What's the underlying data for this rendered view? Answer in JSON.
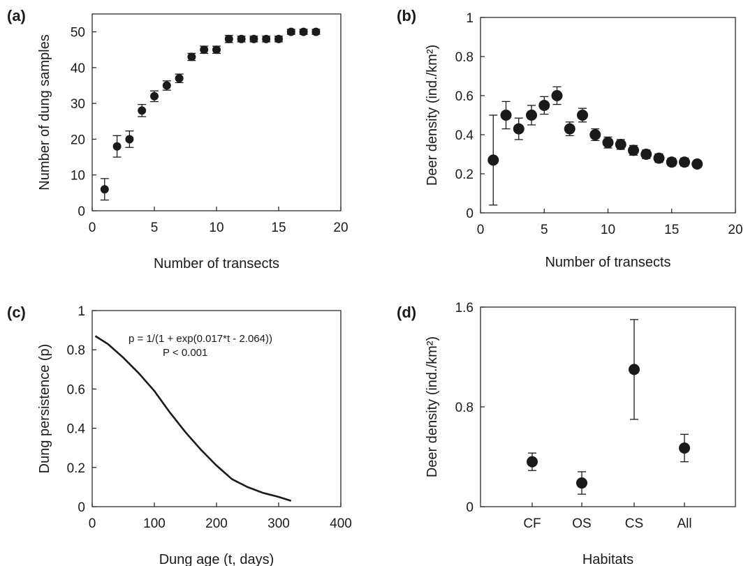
{
  "chart_data": [
    {
      "id": "a",
      "type": "scatter",
      "panel_label": "(a)",
      "xlabel": "Number of transects",
      "ylabel": "Number of dung samples",
      "xlim": [
        0,
        20
      ],
      "ylim": [
        0,
        55
      ],
      "xticks": [
        0,
        5,
        10,
        15,
        20
      ],
      "yticks": [
        0,
        10,
        20,
        30,
        40,
        50
      ],
      "x": [
        1,
        2,
        3,
        4,
        5,
        6,
        7,
        8,
        9,
        10,
        11,
        12,
        13,
        14,
        15,
        16,
        17,
        18
      ],
      "y": [
        6,
        18,
        20,
        28,
        32,
        35,
        37,
        43,
        45,
        45,
        48,
        48,
        48,
        48,
        48,
        50,
        50,
        50
      ],
      "err": [
        3,
        3,
        2.3,
        1.7,
        1.5,
        1.3,
        1.2,
        1,
        1,
        1,
        1,
        0.8,
        0.8,
        0.8,
        0.8,
        0.7,
        0.7,
        0.7
      ]
    },
    {
      "id": "b",
      "type": "scatter",
      "panel_label": "(b)",
      "xlabel": "Number of transects",
      "ylabel": "Deer density (ind./km²)",
      "xlim": [
        0,
        20
      ],
      "ylim": [
        0,
        1
      ],
      "xticks": [
        0,
        5,
        10,
        15,
        20
      ],
      "yticks": [
        0,
        0.2,
        0.4,
        0.6,
        0.8,
        1
      ],
      "x": [
        1,
        2,
        3,
        4,
        5,
        6,
        7,
        8,
        9,
        10,
        11,
        12,
        13,
        14,
        15,
        16,
        17
      ],
      "y": [
        0.27,
        0.5,
        0.43,
        0.5,
        0.55,
        0.6,
        0.43,
        0.5,
        0.4,
        0.36,
        0.35,
        0.32,
        0.3,
        0.28,
        0.26,
        0.26,
        0.25
      ],
      "err": [
        0.23,
        0.07,
        0.055,
        0.05,
        0.045,
        0.045,
        0.035,
        0.035,
        0.03,
        0.028,
        0.025,
        0.025,
        0.022,
        0.022,
        0.02,
        0.02,
        0.015
      ]
    },
    {
      "id": "c",
      "type": "line",
      "panel_label": "(c)",
      "xlabel": "Dung age (t, days)",
      "ylabel": "Dung persistence (p)",
      "xlim": [
        0,
        400
      ],
      "ylim": [
        0,
        1
      ],
      "xticks": [
        0,
        100,
        200,
        300,
        400
      ],
      "yticks": [
        0,
        0.2,
        0.4,
        0.6,
        0.8,
        1
      ],
      "annotation": [
        "p = 1/(1 + exp(0.017*t - 2.064))",
        "P < 0.001"
      ],
      "x": [
        5,
        25,
        50,
        75,
        100,
        125,
        150,
        175,
        200,
        225,
        250,
        275,
        300,
        320
      ],
      "y": [
        0.87,
        0.83,
        0.76,
        0.68,
        0.59,
        0.48,
        0.38,
        0.29,
        0.21,
        0.14,
        0.1,
        0.07,
        0.05,
        0.03
      ]
    },
    {
      "id": "d",
      "type": "scatter",
      "panel_label": "(d)",
      "xlabel": "Habitats",
      "ylabel": "Deer density (ind./km²)",
      "ylim": [
        0,
        1.6
      ],
      "yticks": [
        0,
        0.8,
        1.6
      ],
      "categories": [
        "CF",
        "OS",
        "CS",
        "All"
      ],
      "values": [
        0.36,
        0.19,
        1.1,
        0.47
      ],
      "err": [
        0.07,
        0.09,
        0.4,
        0.11
      ]
    }
  ]
}
